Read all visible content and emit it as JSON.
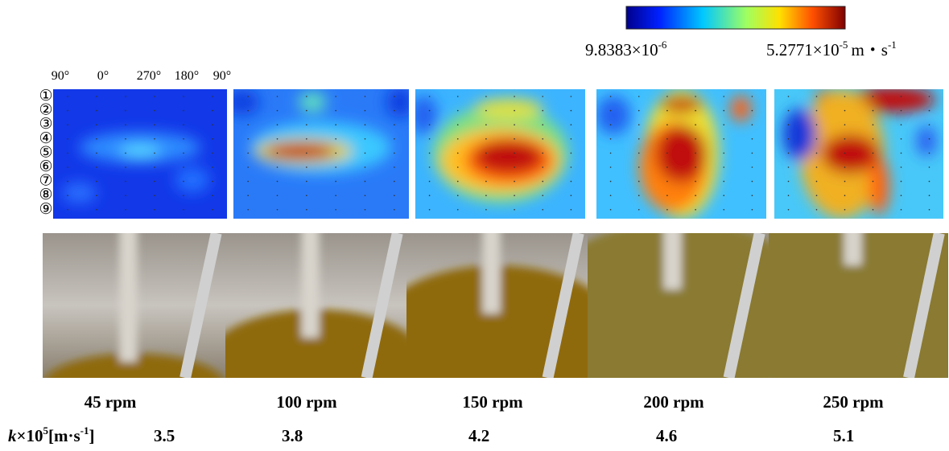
{
  "colorbar": {
    "min": {
      "base": "9.8383×10",
      "exp": "-6"
    },
    "max": {
      "base": "5.2771×10",
      "exp": "-5",
      "unit": "m・s",
      "unit_exp": "-1"
    }
  },
  "angle_labels": [
    "90°",
    "0°",
    "270°",
    "180°",
    "90°"
  ],
  "row_labels": [
    "①",
    "②",
    "③",
    "④",
    "⑤",
    "⑥",
    "⑦",
    "⑧",
    "⑨"
  ],
  "panels": [
    {
      "speed": "45 rpm",
      "k": 3.5
    },
    {
      "speed": "100 rpm",
      "k": 3.8
    },
    {
      "speed": "150 rpm",
      "k": 4.2
    },
    {
      "speed": "200 rpm",
      "k": 4.6
    },
    {
      "speed": "250 rpm",
      "k": 5.1
    }
  ],
  "k_label": {
    "symbol": "k",
    "times": "×10",
    "exp": "5",
    "unit": "[m·s",
    "unit_exp": "-1",
    "close": "]"
  }
}
